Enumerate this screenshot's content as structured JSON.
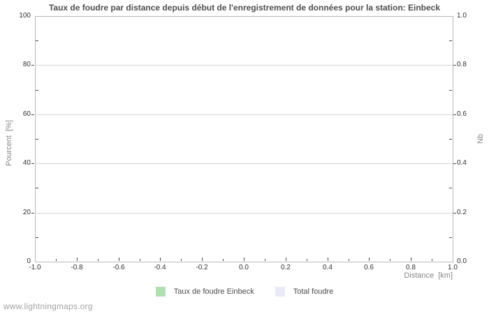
{
  "footer": {
    "text": "www.lightningmaps.org"
  },
  "chart_data": {
    "type": "area",
    "title": "Taux de foudre par distance depuis début de l'enregistrement de données pour la station: Einbeck",
    "xlabel": "Distance  [km]",
    "ylabel_left": "Pourcent  [%]",
    "ylabel_right": "Nb",
    "xlim": [
      -1.0,
      1.0
    ],
    "ylim_left": [
      0,
      100
    ],
    "ylim_right": [
      0.0,
      1.0
    ],
    "grid": "horizontal-only",
    "legend_position": "bottom-center",
    "x_tick_values": [
      -1.0,
      -0.8,
      -0.6,
      -0.4,
      -0.2,
      0.0,
      0.2,
      0.4,
      0.6,
      0.8,
      1.0
    ],
    "x_tick_labels": [
      "-1.0",
      "-0.8",
      "-0.6",
      "-0.4",
      "-0.2",
      "0.0",
      "0.2",
      "0.4",
      "0.6",
      "0.8",
      "1.0"
    ],
    "x_minor_ticks": [
      -0.9,
      -0.7,
      -0.5,
      -0.3,
      -0.1,
      0.1,
      0.3,
      0.5,
      0.7,
      0.9
    ],
    "y_left_tick_values": [
      0,
      20,
      40,
      60,
      80,
      100
    ],
    "y_left_tick_labels": [
      "0",
      "20",
      "40",
      "60",
      "80",
      "100"
    ],
    "y_left_minor_ticks": [
      10,
      30,
      50,
      70,
      90
    ],
    "y_right_tick_values": [
      0.0,
      0.2,
      0.4,
      0.6,
      0.8,
      1.0
    ],
    "y_right_tick_labels": [
      "0.0",
      "0.2",
      "0.4",
      "0.6",
      "0.8",
      "1.0"
    ],
    "y_right_minor_ticks": [
      0.1,
      0.3,
      0.5,
      0.7,
      0.9
    ],
    "series": [
      {
        "name": "Taux de foudre Einbeck",
        "color": "#b3ddb3",
        "values": []
      },
      {
        "name": "Total foudre",
        "color": "#e9e9f8",
        "values": []
      }
    ],
    "legend": [
      {
        "label": "Taux de foudre Einbeck",
        "color": "#b3ddb3"
      },
      {
        "label": "Total foudre",
        "color": "#e9e9f8"
      }
    ],
    "colors": {
      "title": "#4d4d4d",
      "tick_label": "#2e2e2e",
      "axis_label": "#878787",
      "grid": "#d6d6d6",
      "border": "#b8b8b8",
      "tick": "#4a4a4a",
      "footer": "#a3a3a3"
    }
  }
}
